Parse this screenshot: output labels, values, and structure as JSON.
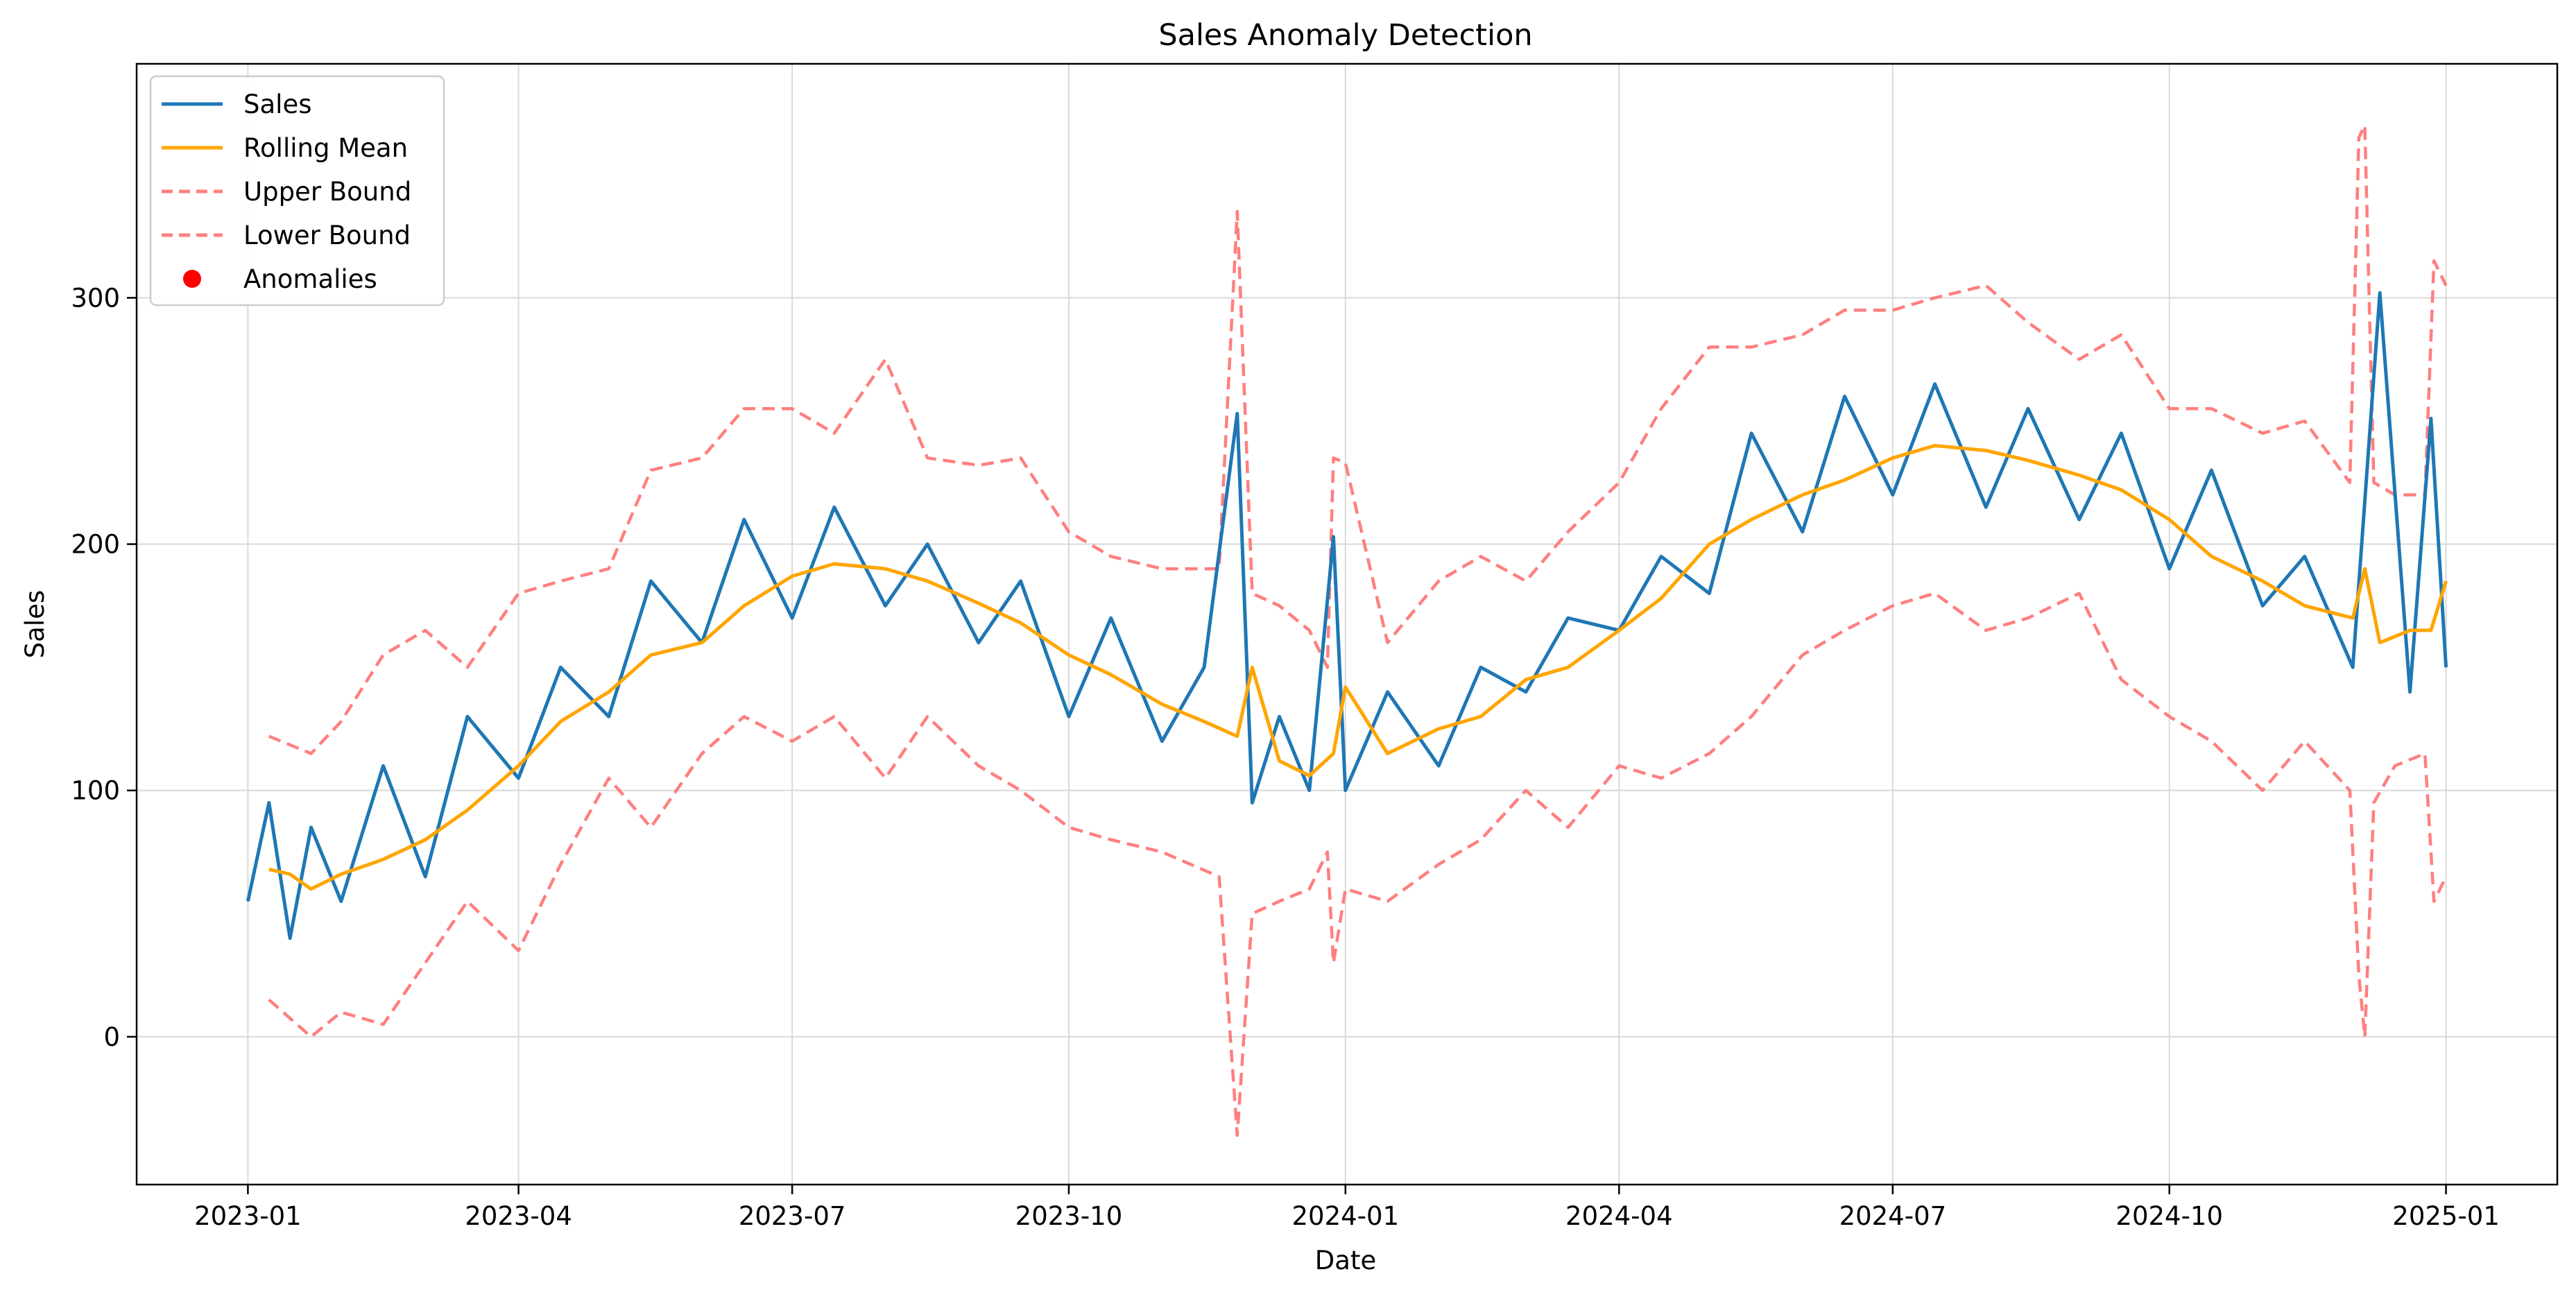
{
  "chart_data": {
    "type": "line",
    "title": "Sales Anomaly Detection",
    "xlabel": "Date",
    "ylabel": "Sales",
    "xlim": [
      "2022-11-25",
      "2025-02-07"
    ],
    "ylim": [
      -60,
      395
    ],
    "x_ticks": [
      "2023-01",
      "2023-04",
      "2023-07",
      "2023-10",
      "2024-01",
      "2024-04",
      "2024-07",
      "2024-10",
      "2025-01"
    ],
    "y_ticks": [
      0,
      100,
      200,
      300
    ],
    "grid": true,
    "legend_position": "top-left",
    "colors": {
      "sales": "#1f77b4",
      "rolling_mean": "#ffa500",
      "bounds": "#ff7f7f",
      "anomalies": "#ff0000"
    },
    "legend": [
      {
        "label": "Sales",
        "style": "line",
        "color": "#1f77b4"
      },
      {
        "label": "Rolling Mean",
        "style": "line",
        "color": "#ffa500"
      },
      {
        "label": "Upper Bound",
        "style": "dashed",
        "color": "#ff7f7f"
      },
      {
        "label": "Lower Bound",
        "style": "dashed",
        "color": "#ff7f7f"
      },
      {
        "label": "Anomalies",
        "style": "marker",
        "color": "#ff0000"
      }
    ],
    "series": [
      {
        "name": "Sales",
        "x": [
          "2023-01-01",
          "2023-01-08",
          "2023-01-15",
          "2023-01-22",
          "2023-02-01",
          "2023-02-15",
          "2023-03-01",
          "2023-03-15",
          "2023-04-01",
          "2023-04-15",
          "2023-05-01",
          "2023-05-15",
          "2023-06-01",
          "2023-06-15",
          "2023-07-01",
          "2023-07-15",
          "2023-08-01",
          "2023-08-15",
          "2023-09-01",
          "2023-09-15",
          "2023-10-01",
          "2023-10-15",
          "2023-11-01",
          "2023-11-15",
          "2023-11-26",
          "2023-12-01",
          "2023-12-10",
          "2023-12-20",
          "2023-12-28",
          "2024-01-01",
          "2024-01-15",
          "2024-02-01",
          "2024-02-15",
          "2024-03-01",
          "2024-03-15",
          "2024-04-01",
          "2024-04-15",
          "2024-05-01",
          "2024-05-15",
          "2024-06-01",
          "2024-06-15",
          "2024-07-01",
          "2024-07-15",
          "2024-08-01",
          "2024-08-15",
          "2024-09-01",
          "2024-09-15",
          "2024-10-01",
          "2024-10-15",
          "2024-11-01",
          "2024-11-15",
          "2024-12-01",
          "2024-12-10",
          "2024-12-20",
          "2024-12-27",
          "2025-01-01"
        ],
        "values": [
          55,
          95,
          40,
          85,
          55,
          110,
          65,
          130,
          105,
          150,
          130,
          185,
          160,
          210,
          170,
          215,
          175,
          200,
          160,
          185,
          130,
          170,
          120,
          150,
          253,
          95,
          130,
          100,
          203,
          100,
          140,
          110,
          150,
          140,
          170,
          165,
          195,
          180,
          245,
          205,
          260,
          220,
          265,
          215,
          255,
          210,
          245,
          190,
          230,
          175,
          195,
          150,
          302,
          140,
          251,
          150
        ]
      },
      {
        "name": "Rolling Mean",
        "x": [
          "2023-01-08",
          "2023-01-15",
          "2023-01-22",
          "2023-02-01",
          "2023-02-15",
          "2023-03-01",
          "2023-03-15",
          "2023-04-01",
          "2023-04-15",
          "2023-05-01",
          "2023-05-15",
          "2023-06-01",
          "2023-06-15",
          "2023-07-01",
          "2023-07-15",
          "2023-08-01",
          "2023-08-15",
          "2023-09-01",
          "2023-09-15",
          "2023-10-01",
          "2023-10-15",
          "2023-11-01",
          "2023-11-15",
          "2023-11-26",
          "2023-12-01",
          "2023-12-10",
          "2023-12-20",
          "2023-12-28",
          "2024-01-01",
          "2024-01-15",
          "2024-02-01",
          "2024-02-15",
          "2024-03-01",
          "2024-03-15",
          "2024-04-01",
          "2024-04-15",
          "2024-05-01",
          "2024-05-15",
          "2024-06-01",
          "2024-06-15",
          "2024-07-01",
          "2024-07-15",
          "2024-08-01",
          "2024-08-15",
          "2024-09-01",
          "2024-09-15",
          "2024-10-01",
          "2024-10-15",
          "2024-11-01",
          "2024-11-15",
          "2024-12-01",
          "2024-12-05",
          "2024-12-10",
          "2024-12-20",
          "2024-12-27",
          "2025-01-01"
        ],
        "values": [
          68,
          66,
          60,
          66,
          72,
          80,
          92,
          110,
          128,
          140,
          155,
          160,
          175,
          187,
          192,
          190,
          185,
          176,
          168,
          155,
          147,
          135,
          128,
          122,
          150,
          112,
          106,
          115,
          142,
          115,
          125,
          130,
          145,
          150,
          165,
          178,
          200,
          210,
          220,
          226,
          235,
          240,
          238,
          234,
          228,
          222,
          210,
          195,
          185,
          175,
          170,
          190,
          160,
          165,
          165,
          185
        ]
      },
      {
        "name": "Upper Bound",
        "x": [
          "2023-01-08",
          "2023-01-22",
          "2023-02-01",
          "2023-02-15",
          "2023-03-01",
          "2023-03-15",
          "2023-04-01",
          "2023-04-15",
          "2023-05-01",
          "2023-05-15",
          "2023-06-01",
          "2023-06-15",
          "2023-07-01",
          "2023-07-15",
          "2023-08-01",
          "2023-08-15",
          "2023-09-01",
          "2023-09-15",
          "2023-10-01",
          "2023-10-15",
          "2023-11-01",
          "2023-11-20",
          "2023-11-26",
          "2023-12-01",
          "2023-12-10",
          "2023-12-20",
          "2023-12-26",
          "2023-12-28",
          "2024-01-01",
          "2024-01-15",
          "2024-02-01",
          "2024-02-15",
          "2024-03-01",
          "2024-03-15",
          "2024-04-01",
          "2024-04-15",
          "2024-05-01",
          "2024-05-15",
          "2024-06-01",
          "2024-06-15",
          "2024-07-01",
          "2024-07-15",
          "2024-08-01",
          "2024-08-15",
          "2024-09-01",
          "2024-09-15",
          "2024-10-01",
          "2024-10-15",
          "2024-11-01",
          "2024-11-15",
          "2024-11-30",
          "2024-12-03",
          "2024-12-05",
          "2024-12-08",
          "2024-12-15",
          "2024-12-25",
          "2024-12-28",
          "2025-01-01"
        ],
        "values": [
          122,
          115,
          128,
          155,
          165,
          150,
          180,
          185,
          190,
          230,
          235,
          255,
          255,
          245,
          275,
          235,
          232,
          235,
          205,
          195,
          190,
          190,
          335,
          180,
          175,
          165,
          150,
          235,
          233,
          160,
          185,
          195,
          185,
          205,
          225,
          255,
          280,
          280,
          285,
          295,
          295,
          300,
          305,
          290,
          275,
          285,
          255,
          255,
          245,
          250,
          225,
          365,
          370,
          225,
          220,
          220,
          315,
          305
        ]
      },
      {
        "name": "Lower Bound",
        "x": [
          "2023-01-08",
          "2023-01-22",
          "2023-02-01",
          "2023-02-15",
          "2023-03-01",
          "2023-03-15",
          "2023-04-01",
          "2023-04-15",
          "2023-05-01",
          "2023-05-15",
          "2023-06-01",
          "2023-06-15",
          "2023-07-01",
          "2023-07-15",
          "2023-08-01",
          "2023-08-15",
          "2023-09-01",
          "2023-09-15",
          "2023-10-01",
          "2023-10-15",
          "2023-11-01",
          "2023-11-20",
          "2023-11-26",
          "2023-12-01",
          "2023-12-10",
          "2023-12-20",
          "2023-12-26",
          "2023-12-28",
          "2024-01-01",
          "2024-01-15",
          "2024-02-01",
          "2024-02-15",
          "2024-03-01",
          "2024-03-15",
          "2024-04-01",
          "2024-04-15",
          "2024-05-01",
          "2024-05-15",
          "2024-06-01",
          "2024-06-15",
          "2024-07-01",
          "2024-07-15",
          "2024-08-01",
          "2024-08-15",
          "2024-09-01",
          "2024-09-15",
          "2024-10-01",
          "2024-10-15",
          "2024-11-01",
          "2024-11-15",
          "2024-11-30",
          "2024-12-03",
          "2024-12-05",
          "2024-12-08",
          "2024-12-15",
          "2024-12-25",
          "2024-12-28",
          "2025-01-01"
        ],
        "values": [
          15,
          0,
          10,
          5,
          30,
          55,
          35,
          70,
          105,
          85,
          115,
          130,
          120,
          130,
          105,
          130,
          110,
          100,
          85,
          80,
          75,
          65,
          -40,
          50,
          55,
          60,
          75,
          30,
          60,
          55,
          70,
          80,
          100,
          85,
          110,
          105,
          115,
          130,
          155,
          165,
          175,
          180,
          165,
          170,
          180,
          145,
          130,
          120,
          100,
          120,
          100,
          25,
          0,
          95,
          110,
          115,
          55,
          65
        ]
      }
    ],
    "anomalies": []
  }
}
